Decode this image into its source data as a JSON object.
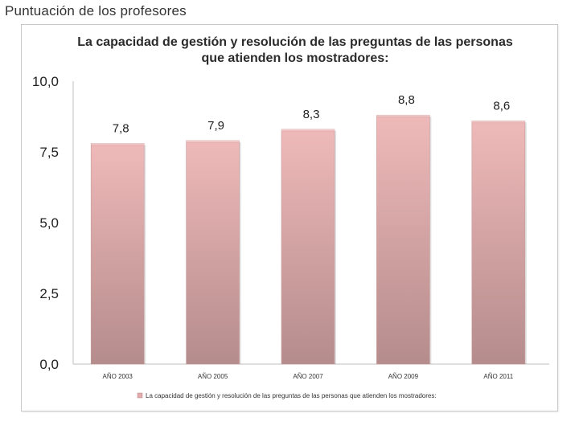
{
  "slide": {
    "title": "Puntuación de los profesores"
  },
  "chart_data": {
    "type": "bar",
    "title_lines": [
      "La capacidad de gestión y resolución de las preguntas de las personas",
      "que atienden los mostradores:"
    ],
    "categories": [
      "AÑO 2003",
      "AÑO 2005",
      "AÑO 2007",
      "AÑO 2009",
      "AÑO 2011"
    ],
    "series": [
      {
        "name": "La capacidad de gestión y resolución de las preguntas de las personas que atienden los mostradores:",
        "values": [
          7.8,
          7.9,
          8.3,
          8.8,
          8.6
        ],
        "value_labels": [
          "7,8",
          "7,9",
          "8,3",
          "8,8",
          "8,6"
        ],
        "color": "#e8b4b4"
      }
    ],
    "ylim": [
      0,
      10
    ],
    "yticks": [
      0,
      2.5,
      5,
      7.5,
      10
    ],
    "ytick_labels": [
      "0,0",
      "2,5",
      "5,0",
      "7,5",
      "10,0"
    ],
    "xlabel": "",
    "ylabel": "",
    "grid": false,
    "legend_position": "bottom"
  }
}
